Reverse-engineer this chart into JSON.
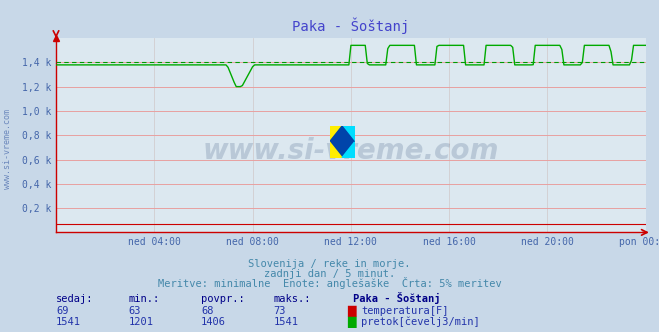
{
  "title": "Paka - Šoštanj",
  "background_color": "#c8d8e8",
  "plot_bg_color": "#dce8f0",
  "grid_color_h": "#e8a0a0",
  "grid_color_v": "#d0c8c8",
  "title_color": "#4444cc",
  "axis_color": "#cc0000",
  "tick_color": "#4466aa",
  "ylabel_labels": [
    "0,2 k",
    "0,4 k",
    "0,6 k",
    "0,8 k",
    "1,0 k",
    "1,2 k",
    "1,4 k"
  ],
  "ylabel_values": [
    200,
    400,
    600,
    800,
    1000,
    1200,
    1400
  ],
  "ylim": [
    0,
    1600
  ],
  "xtick_labels": [
    "ned 04:00",
    "ned 08:00",
    "ned 12:00",
    "ned 16:00",
    "ned 20:00",
    "pon 00:00"
  ],
  "xtick_positions": [
    0.1667,
    0.3333,
    0.5,
    0.6667,
    0.8333,
    1.0
  ],
  "temp_color": "#cc0000",
  "flow_color": "#00aa00",
  "avg_flow_color": "#009900",
  "watermark_text": "www.si-vreme.com",
  "watermark_color": "#1a3a6a",
  "watermark_alpha": 0.18,
  "watermark_fontsize": 20,
  "subtitle1": "Slovenija / reke in morje.",
  "subtitle2": "zadnji dan / 5 minut.",
  "subtitle3": "Meritve: minimalne  Enote: anglešaške  Črta: 5% meritev",
  "subtitle_color": "#4488aa",
  "table_header": [
    "sedaj:",
    "min.:",
    "povpr.:",
    "maks.:",
    "Paka - Šoštanj"
  ],
  "table_color": "#2233aa",
  "table_header_color": "#000088",
  "temp_row": [
    "69",
    "63",
    "68",
    "73"
  ],
  "flow_row": [
    "1541",
    "1201",
    "1406",
    "1541"
  ],
  "temp_label": "temperatura[F]",
  "flow_label": "pretok[čevelj3/min]",
  "temp_swatch_color": "#cc0000",
  "flow_swatch_color": "#00aa00",
  "avg_flow_value": 1406,
  "base_flow": 1380,
  "high_flow": 1541,
  "low_flow": 1201
}
